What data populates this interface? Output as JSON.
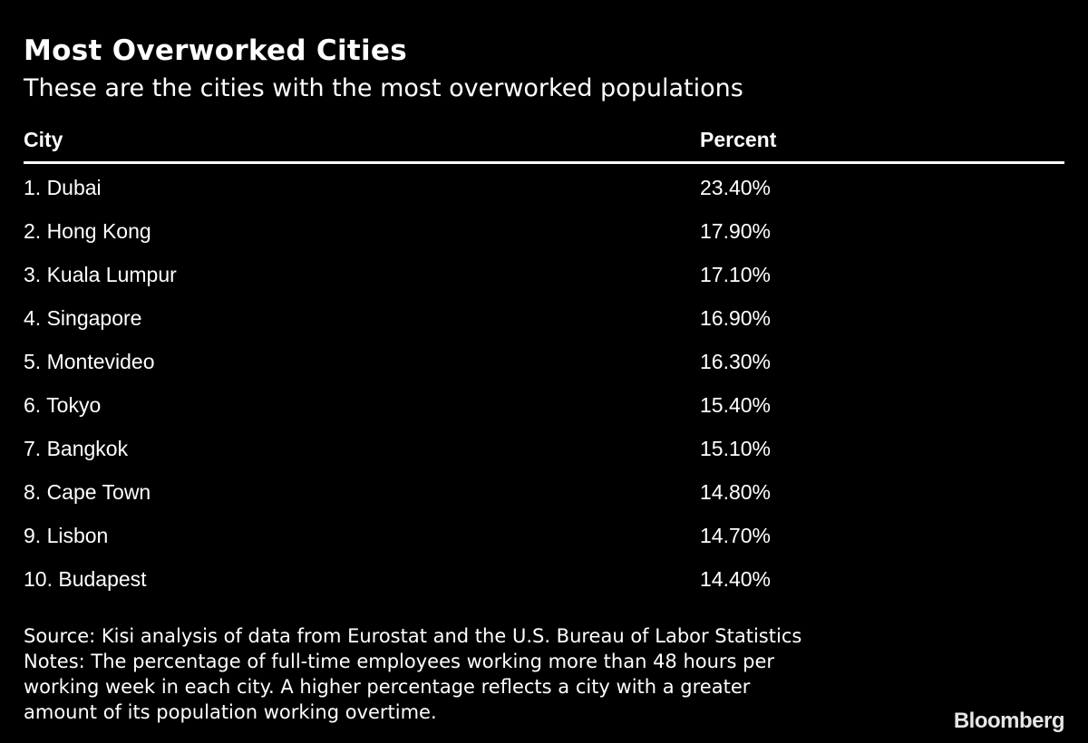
{
  "title": "Most Overworked Cities",
  "subtitle": "These are the cities with the most overworked populations",
  "colors": {
    "background": "#000000",
    "text": "#ffffff",
    "rule": "#ffffff"
  },
  "chart_data": {
    "type": "table",
    "title": "Most Overworked Cities",
    "subtitle": "These are the cities with the most overworked populations",
    "columns": [
      "City",
      "Percent"
    ],
    "rows": [
      {
        "city": "1. Dubai",
        "percent": "23.40%"
      },
      {
        "city": "2. Hong Kong",
        "percent": "17.90%"
      },
      {
        "city": "3. Kuala Lumpur",
        "percent": "17.10%"
      },
      {
        "city": "4. Singapore",
        "percent": "16.90%"
      },
      {
        "city": "5. Montevideo",
        "percent": "16.30%"
      },
      {
        "city": "6. Tokyo",
        "percent": "15.40%"
      },
      {
        "city": "7. Bangkok",
        "percent": "15.10%"
      },
      {
        "city": "8. Cape Town",
        "percent": "14.80%"
      },
      {
        "city": "9. Lisbon",
        "percent": "14.70%"
      },
      {
        "city": "10. Budapest",
        "percent": "14.40%"
      }
    ]
  },
  "footnotes": {
    "lines": [
      "Source: Kisi analysis of data from Eurostat and the U.S. Bureau of Labor Statistics",
      "Notes: The percentage of full-time employees working more than 48 hours per",
      "working week in each city. A higher percentage reflects a city with a greater",
      "amount of its population working overtime."
    ]
  },
  "brand": "Bloomberg"
}
